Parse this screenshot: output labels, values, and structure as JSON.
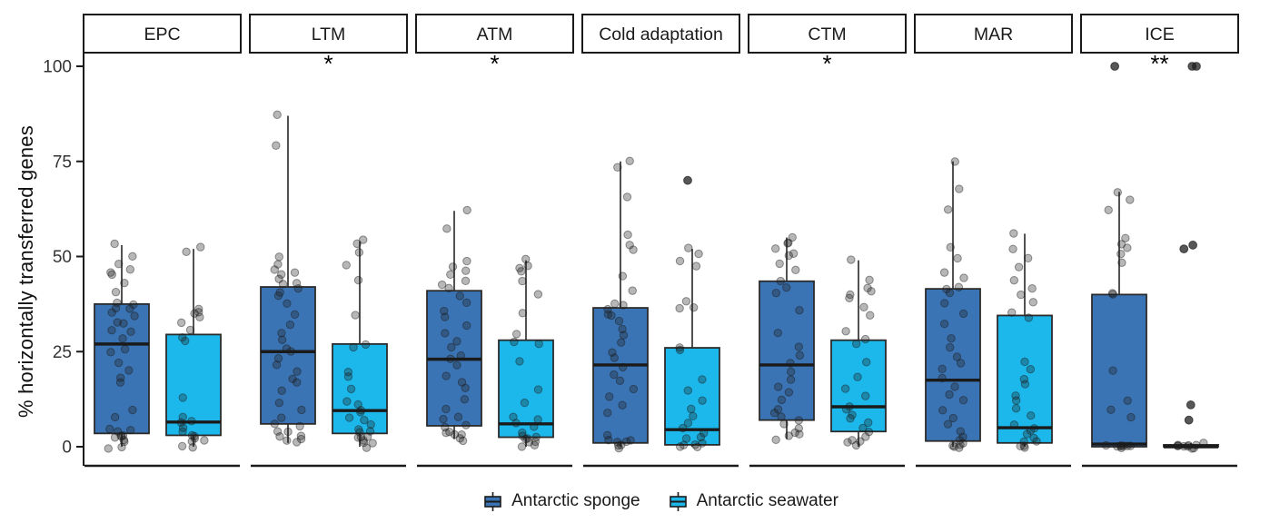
{
  "figure": {
    "ylabel": "% horizontally transferred genes",
    "y_ticks": [
      0,
      25,
      50,
      75,
      100
    ],
    "colors": {
      "sponge": "#3B74B4",
      "seawater": "#1CB8EC",
      "box_stroke": "#2B2B2B",
      "median": "#1A1A1A",
      "axis": "#1A1A1A",
      "tick_text": "#333333",
      "point": "#1F1F1F"
    },
    "legend": {
      "position": "bottom",
      "entries": [
        {
          "label": "Antarctic sponge",
          "color": "#3B74B4"
        },
        {
          "label": "Antarctic seawater",
          "color": "#1CB8EC"
        }
      ]
    }
  },
  "chart_data": {
    "type": "boxplot",
    "title": "",
    "xlabel": "",
    "ylabel": "% horizontally transferred genes",
    "ylim": [
      0,
      100
    ],
    "grid": false,
    "legend_position": "bottom",
    "series_names": [
      "Antarctic sponge",
      "Antarctic seawater"
    ],
    "facets": [
      {
        "label": "EPC",
        "significance": "",
        "groups": [
          {
            "name": "Antarctic sponge",
            "color": "#3B74B4",
            "stats": {
              "min": 0,
              "q1": 3.5,
              "median": 27,
              "q3": 37.5,
              "max": 53
            },
            "points": [
              53,
              50,
              48,
              47,
              46,
              45,
              43,
              41,
              38,
              37,
              36,
              36,
              35,
              34,
              33,
              32,
              31,
              30,
              28,
              26,
              25,
              22,
              20,
              18,
              17,
              10,
              8,
              5,
              4,
              4,
              3,
              3,
              3,
              2,
              2,
              1,
              0,
              0
            ],
            "outliers": []
          },
          {
            "name": "Antarctic seawater",
            "color": "#1CB8EC",
            "stats": {
              "min": 0,
              "q1": 3,
              "median": 6.5,
              "q3": 29.5,
              "max": 52
            },
            "points": [
              52,
              51,
              36,
              35,
              35,
              34,
              33,
              31,
              29,
              28,
              13,
              8,
              7,
              6,
              5,
              4,
              3,
              3,
              2,
              2,
              1,
              0,
              0
            ],
            "outliers": []
          }
        ]
      },
      {
        "label": "LTM",
        "significance": "*",
        "groups": [
          {
            "name": "Antarctic sponge",
            "color": "#3B74B4",
            "stats": {
              "min": 1,
              "q1": 6,
              "median": 25,
              "q3": 42,
              "max": 87
            },
            "points": [
              87,
              79,
              50,
              48,
              47,
              46,
              45,
              44,
              43,
              43,
              42,
              41,
              40,
              38,
              35,
              32,
              30,
              28,
              26,
              25,
              23,
              22,
              20,
              18,
              17,
              15,
              12,
              10,
              8,
              6,
              5,
              4,
              4,
              3,
              3,
              2,
              2,
              1
            ],
            "outliers": []
          },
          {
            "name": "Antarctic seawater",
            "color": "#1CB8EC",
            "stats": {
              "min": 0,
              "q1": 3.5,
              "median": 9.5,
              "q3": 27,
              "max": 54
            },
            "points": [
              54,
              53,
              51,
              48,
              44,
              35,
              27,
              26,
              20,
              18,
              15,
              12,
              11,
              10,
              9,
              8,
              7,
              6,
              5,
              4,
              4,
              3,
              3,
              2,
              2,
              1,
              1,
              0
            ],
            "outliers": []
          }
        ]
      },
      {
        "label": "ATM",
        "significance": "*",
        "groups": [
          {
            "name": "Antarctic sponge",
            "color": "#3B74B4",
            "stats": {
              "min": 2,
              "q1": 5.5,
              "median": 23,
              "q3": 41,
              "max": 62
            },
            "points": [
              62,
              57,
              49,
              47,
              46,
              45,
              44,
              43,
              42,
              40,
              38,
              36,
              34,
              32,
              30,
              28,
              26,
              24,
              23,
              21,
              19,
              17,
              15,
              12,
              10,
              8,
              7,
              6,
              5,
              4,
              4,
              3,
              3,
              2,
              2
            ],
            "outliers": []
          },
          {
            "name": "Antarctic seawater",
            "color": "#1CB8EC",
            "stats": {
              "min": 0,
              "q1": 2.5,
              "median": 6,
              "q3": 28,
              "max": 49
            },
            "points": [
              49,
              48,
              47,
              46,
              44,
              40,
              35,
              30,
              28,
              27,
              22,
              15,
              12,
              8,
              7,
              6,
              5,
              4,
              3,
              3,
              2,
              2,
              1,
              1,
              0,
              0
            ],
            "outliers": []
          }
        ]
      },
      {
        "label": "Cold adaptation",
        "significance": "",
        "groups": [
          {
            "name": "Antarctic sponge",
            "color": "#3B74B4",
            "stats": {
              "min": 0,
              "q1": 1,
              "median": 21.5,
              "q3": 36.5,
              "max": 75
            },
            "points": [
              75,
              73,
              66,
              56,
              53,
              52,
              45,
              41,
              38,
              37,
              36,
              35,
              34,
              33,
              31,
              29,
              27,
              25,
              23,
              21,
              19,
              17,
              15,
              13,
              11,
              9,
              3,
              2,
              2,
              1,
              1,
              0,
              0,
              0
            ],
            "outliers": []
          },
          {
            "name": "Antarctic seawater",
            "color": "#1CB8EC",
            "stats": {
              "min": 0,
              "q1": 0.5,
              "median": 4.5,
              "q3": 26,
              "max": 52
            },
            "points": [
              52,
              51,
              49,
              47,
              38,
              37,
              36,
              26,
              25,
              18,
              15,
              12,
              10,
              8,
              6,
              5,
              4,
              3,
              2,
              1,
              1,
              0,
              0,
              0
            ],
            "outliers": [
              70
            ]
          }
        ]
      },
      {
        "label": "CTM",
        "significance": "*",
        "groups": [
          {
            "name": "Antarctic sponge",
            "color": "#3B74B4",
            "stats": {
              "min": 2,
              "q1": 7,
              "median": 21.5,
              "q3": 43.5,
              "max": 55
            },
            "points": [
              55,
              54,
              53,
              52,
              51,
              50,
              48,
              46,
              44,
              42,
              40,
              36,
              30,
              26,
              24,
              22,
              20,
              18,
              16,
              14,
              12,
              10,
              9,
              8,
              7,
              6,
              5,
              4,
              3,
              3,
              2
            ],
            "outliers": []
          },
          {
            "name": "Antarctic seawater",
            "color": "#1CB8EC",
            "stats": {
              "min": 0,
              "q1": 4,
              "median": 10.5,
              "q3": 28,
              "max": 49
            },
            "points": [
              49,
              44,
              42,
              41,
              40,
              39,
              37,
              35,
              30,
              28,
              27,
              22,
              18,
              15,
              13,
              11,
              10,
              8,
              7,
              6,
              5,
              4,
              3,
              2,
              1,
              1,
              0
            ],
            "outliers": []
          }
        ]
      },
      {
        "label": "MAR",
        "significance": "",
        "groups": [
          {
            "name": "Antarctic sponge",
            "color": "#3B74B4",
            "stats": {
              "min": 0,
              "q1": 1.5,
              "median": 17.5,
              "q3": 41.5,
              "max": 75
            },
            "points": [
              75,
              68,
              62,
              52,
              50,
              46,
              44,
              42,
              41,
              40,
              38,
              35,
              32,
              28,
              26,
              24,
              22,
              20,
              18,
              16,
              14,
              12,
              10,
              8,
              6,
              4,
              3,
              2,
              1,
              1,
              0,
              0,
              0
            ],
            "outliers": []
          },
          {
            "name": "Antarctic seawater",
            "color": "#1CB8EC",
            "stats": {
              "min": 0,
              "q1": 1,
              "median": 5,
              "q3": 34.5,
              "max": 56
            },
            "points": [
              56,
              52,
              50,
              47,
              44,
              42,
              40,
              38,
              35,
              34,
              22,
              20,
              18,
              16,
              13,
              12,
              10,
              8,
              6,
              5,
              4,
              3,
              2,
              1,
              1,
              0,
              0,
              0
            ],
            "outliers": []
          }
        ]
      },
      {
        "label": "ICE",
        "significance": "**",
        "groups": [
          {
            "name": "Antarctic sponge",
            "color": "#3B74B4",
            "stats": {
              "min": 0,
              "q1": 0,
              "median": 0.7,
              "q3": 40,
              "max": 67
            },
            "points": [
              67,
              65,
              62,
              55,
              53,
              52,
              51,
              48,
              40,
              40,
              20,
              12,
              10,
              8,
              0,
              0,
              0,
              0,
              0,
              0,
              0,
              0
            ],
            "outliers": [
              100
            ]
          },
          {
            "name": "Antarctic seawater",
            "color": "#1CB8EC",
            "stats": {
              "min": 0,
              "q1": 0,
              "median": 0,
              "q3": 0.5,
              "max": 1
            },
            "points": [
              1,
              0,
              0,
              0,
              0,
              0,
              0,
              0,
              0,
              0
            ],
            "outliers": [
              100,
              100,
              53,
              52,
              11,
              7
            ]
          }
        ]
      }
    ]
  }
}
